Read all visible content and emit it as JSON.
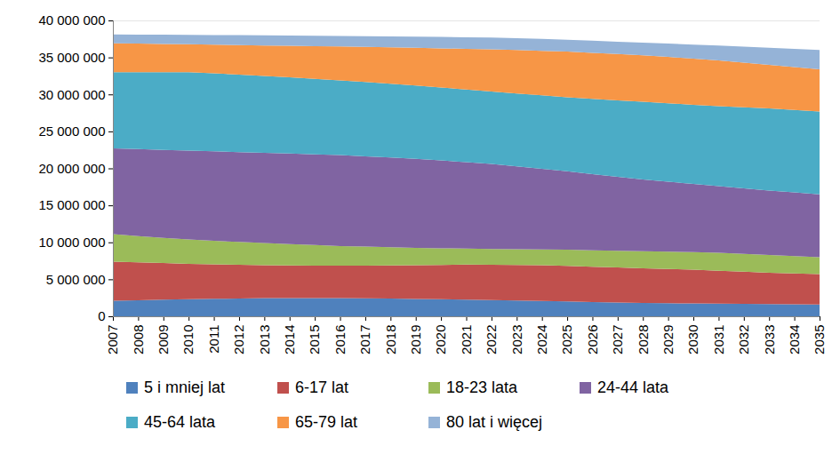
{
  "chart_data": {
    "type": "area",
    "stacked": true,
    "grid": true,
    "legend": "bottom",
    "x": [
      2007,
      2008,
      2009,
      2010,
      2011,
      2012,
      2013,
      2014,
      2015,
      2016,
      2017,
      2018,
      2019,
      2020,
      2021,
      2022,
      2023,
      2024,
      2025,
      2026,
      2027,
      2028,
      2029,
      2030,
      2031,
      2032,
      2033,
      2034,
      2035
    ],
    "xlim": [
      2007,
      2035
    ],
    "xticks": [
      2007,
      2008,
      2009,
      2010,
      2011,
      2012,
      2013,
      2014,
      2015,
      2016,
      2017,
      2018,
      2019,
      2020,
      2021,
      2022,
      2023,
      2024,
      2025,
      2026,
      2027,
      2028,
      2029,
      2030,
      2031,
      2032,
      2033,
      2034,
      2035
    ],
    "ylim": [
      0,
      40000000
    ],
    "yticks": [
      0,
      {
        "value": 5000000,
        "label": "5 000 000"
      },
      {
        "value": 10000000,
        "label": "10 000 000"
      },
      {
        "value": 15000000,
        "label": "15 000 000"
      },
      {
        "value": 20000000,
        "label": "20 000 000"
      },
      {
        "value": 25000000,
        "label": "25 000 000"
      },
      {
        "value": 30000000,
        "label": "30 000 000"
      },
      {
        "value": 35000000,
        "label": "35 000 000"
      },
      {
        "value": 40000000,
        "label": "40 000 000"
      }
    ],
    "series": [
      {
        "name": "5 i mniej lat",
        "color": "#4f81bd",
        "values": [
          2100000,
          2170000,
          2240000,
          2300000,
          2360000,
          2410000,
          2450000,
          2460000,
          2460000,
          2450000,
          2420000,
          2390000,
          2350000,
          2310000,
          2260000,
          2200000,
          2140000,
          2070000,
          2000000,
          1930000,
          1860000,
          1800000,
          1760000,
          1730000,
          1700000,
          1670000,
          1650000,
          1620000,
          1600000
        ]
      },
      {
        "name": "6-17 lat",
        "color": "#c0504d",
        "values": [
          5300000,
          5130000,
          4960000,
          4800000,
          4670000,
          4550000,
          4450000,
          4420000,
          4400000,
          4400000,
          4440000,
          4490000,
          4550000,
          4630000,
          4740000,
          4780000,
          4810000,
          4830000,
          4810000,
          4780000,
          4740000,
          4700000,
          4640000,
          4570000,
          4470000,
          4370000,
          4250000,
          4180000,
          4100000
        ]
      },
      {
        "name": "18-23 lata",
        "color": "#9bbb59",
        "values": [
          3700000,
          3550000,
          3400000,
          3300000,
          3170000,
          3090000,
          3000000,
          2890000,
          2770000,
          2650000,
          2560000,
          2450000,
          2350000,
          2260000,
          2150000,
          2120000,
          2120000,
          2130000,
          2190000,
          2220000,
          2270000,
          2300000,
          2330000,
          2370000,
          2430000,
          2410000,
          2400000,
          2350000,
          2300000
        ]
      },
      {
        "name": "24-44 lata",
        "color": "#8064a2",
        "values": [
          11600000,
          11750000,
          11900000,
          12000000,
          12100000,
          12150000,
          12200000,
          12230000,
          12270000,
          12300000,
          12210000,
          12140000,
          12050000,
          11870000,
          11680000,
          11500000,
          11200000,
          10900000,
          10600000,
          10300000,
          10000000,
          9700000,
          9470000,
          9230000,
          9000000,
          8850000,
          8700000,
          8600000,
          8500000
        ]
      },
      {
        "name": "45-64 lata",
        "color": "#4bacc6",
        "values": [
          10300000,
          10400000,
          10500000,
          10600000,
          10550000,
          10470000,
          10400000,
          10300000,
          10200000,
          10100000,
          10040000,
          9960000,
          9900000,
          9860000,
          9840000,
          9800000,
          9860000,
          9940000,
          10000000,
          10170000,
          10330000,
          10500000,
          10600000,
          10700000,
          10800000,
          10950000,
          11100000,
          11150000,
          11200000
        ]
      },
      {
        "name": "65-79 lat",
        "color": "#f79646",
        "values": [
          3900000,
          3870000,
          3830000,
          3800000,
          3880000,
          4000000,
          4100000,
          4270000,
          4430000,
          4600000,
          4760000,
          4940000,
          5100000,
          5300000,
          5500000,
          5700000,
          5870000,
          6030000,
          6200000,
          6230000,
          6270000,
          6300000,
          6270000,
          6230000,
          6200000,
          6050000,
          5900000,
          5800000,
          5700000
        ]
      },
      {
        "name": "80 lat i więcej",
        "color": "#95b3d7",
        "values": [
          1200000,
          1210000,
          1240000,
          1250000,
          1300000,
          1350000,
          1400000,
          1400000,
          1400000,
          1400000,
          1440000,
          1460000,
          1500000,
          1540000,
          1560000,
          1600000,
          1600000,
          1600000,
          1600000,
          1640000,
          1660000,
          1700000,
          1800000,
          1900000,
          2000000,
          2150000,
          2300000,
          2450000,
          2600000
        ]
      }
    ]
  }
}
